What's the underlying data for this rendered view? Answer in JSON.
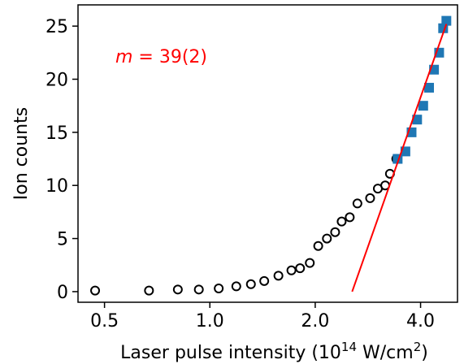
{
  "chart_data": {
    "type": "scatter",
    "xscale": "log",
    "xlim": [
      0.42,
      5.1
    ],
    "ylim": [
      -1.0,
      27.0
    ],
    "grid": false,
    "xlabel_main": "Laser pulse intensity (10",
    "xlabel_exp": "14",
    "xlabel_unit": " W/cm",
    "xlabel_unit_exp": "2",
    "xlabel_close": ")",
    "ylabel": "Ion counts",
    "x_ticks": [
      {
        "value": 0.5,
        "label": "0.5"
      },
      {
        "value": 1.0,
        "label": "1.0"
      },
      {
        "value": 2.0,
        "label": "2.0"
      },
      {
        "value": 4.0,
        "label": "4.0"
      }
    ],
    "y_ticks": [
      {
        "value": 0,
        "label": "0"
      },
      {
        "value": 5,
        "label": "5"
      },
      {
        "value": 10,
        "label": "10"
      },
      {
        "value": 15,
        "label": "15"
      },
      {
        "value": 20,
        "label": "20"
      },
      {
        "value": 25,
        "label": "25"
      }
    ],
    "annotation": {
      "m_symbol": "m",
      "eq_text": " = 39(2)",
      "color": "#ff0000"
    },
    "series": [
      {
        "marker": "open-circle",
        "color": "#000000",
        "x": [
          0.47,
          0.67,
          0.81,
          0.93,
          1.06,
          1.19,
          1.31,
          1.43,
          1.57,
          1.71,
          1.81,
          1.93,
          2.04,
          2.16,
          2.28,
          2.38,
          2.51,
          2.64,
          2.87,
          3.02,
          3.17,
          3.27,
          3.41
        ],
        "y": [
          0.1,
          0.1,
          0.2,
          0.2,
          0.3,
          0.5,
          0.7,
          1.0,
          1.5,
          2.0,
          2.2,
          2.7,
          4.3,
          5.0,
          5.6,
          6.6,
          7.0,
          8.3,
          8.8,
          9.7,
          10.0,
          11.1,
          12.5
        ]
      },
      {
        "marker": "filled-square",
        "color": "#1f77b4",
        "x": [
          3.44,
          3.62,
          3.77,
          3.91,
          4.07,
          4.23,
          4.37,
          4.52,
          4.64,
          4.74
        ],
        "y": [
          12.5,
          13.2,
          15.0,
          16.2,
          17.5,
          19.2,
          20.9,
          22.5,
          24.8,
          25.5
        ]
      },
      {
        "marker": "line",
        "color": "#ff0000",
        "x": [
          2.55,
          4.74
        ],
        "y": [
          0.0,
          25.2
        ]
      }
    ]
  }
}
